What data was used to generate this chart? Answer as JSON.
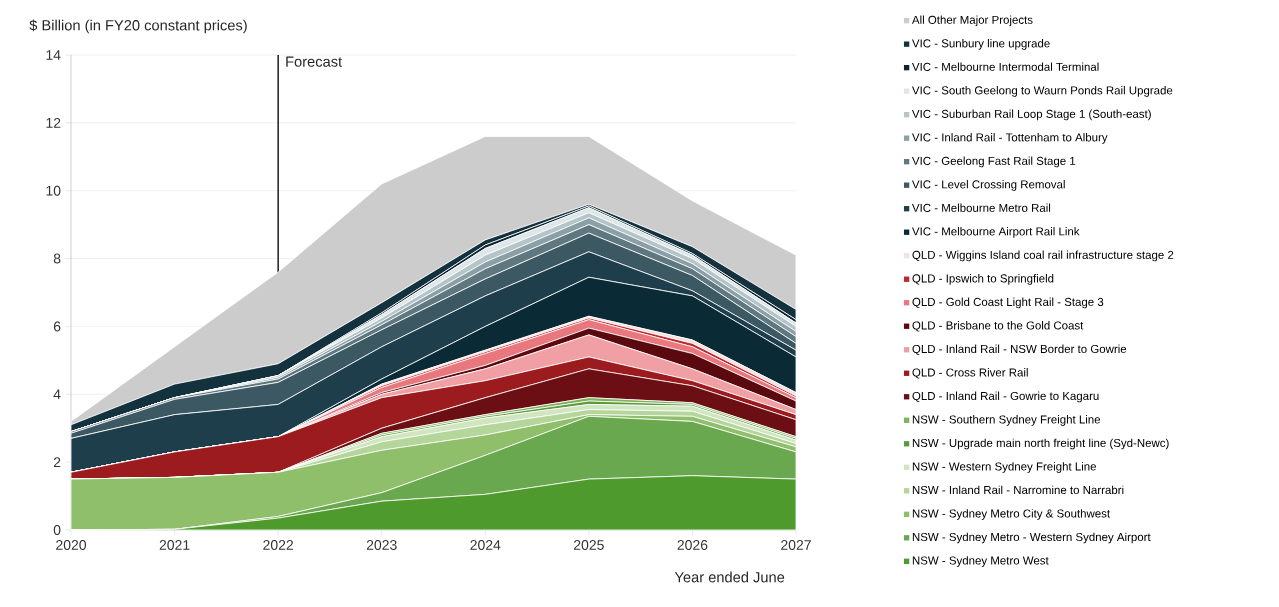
{
  "chart_data": {
    "type": "area",
    "stacked": true,
    "ylabel": "$ Billion (in FY20 constant prices)",
    "xlabel": "Year ended June",
    "x": [
      2020,
      2021,
      2022,
      2023,
      2024,
      2025,
      2026,
      2027
    ],
    "xlim": [
      2020,
      2027
    ],
    "xticks": [
      2020,
      2021,
      2022,
      2023,
      2024,
      2025,
      2026,
      2027
    ],
    "ylim": [
      0,
      14
    ],
    "yticks": [
      0,
      2,
      4,
      6,
      8,
      10,
      12,
      14
    ],
    "grid": "y",
    "legend": "right",
    "ref_lines": [
      {
        "axis": "x",
        "value": 2022,
        "label": "Forecast",
        "color": "#000000"
      }
    ],
    "series": [
      {
        "name": "NSW - Sydney Metro West",
        "color": "#4f9a2c",
        "values": [
          0,
          0.02,
          0.35,
          0.85,
          1.05,
          1.5,
          1.6,
          1.5
        ]
      },
      {
        "name": "NSW - Sydney Metro - Western Sydney Airport",
        "color": "#6aa84f",
        "values": [
          0,
          0,
          0.05,
          0.25,
          1.15,
          1.85,
          1.6,
          0.8
        ]
      },
      {
        "name": "NSW - Sydney Metro City & Southwest",
        "color": "#8fbf6a",
        "values": [
          1.5,
          1.53,
          1.3,
          1.25,
          0.6,
          0.05,
          0.15,
          0.15
        ]
      },
      {
        "name": "NSW - Inland Rail - Narromine to Narrabri",
        "color": "#b5d69b",
        "values": [
          0,
          0,
          0,
          0.25,
          0.3,
          0.15,
          0.15,
          0.1
        ]
      },
      {
        "name": "NSW - Western Sydney Freight Line",
        "color": "#d0e6c0",
        "values": [
          0,
          0,
          0,
          0.15,
          0.2,
          0.15,
          0.15,
          0.1
        ]
      },
      {
        "name": "NSW - Upgrade main north freight line (Syd-Newc)",
        "color": "#5a9a3a",
        "values": [
          0,
          0,
          0,
          0.05,
          0.05,
          0.1,
          0.05,
          0.05
        ]
      },
      {
        "name": "NSW - Southern Sydney Freight Line",
        "color": "#7fb35a",
        "values": [
          0,
          0,
          0,
          0.05,
          0.05,
          0.1,
          0.05,
          0.05
        ]
      },
      {
        "name": "QLD - Inland Rail - Gowrie to Kagaru",
        "color": "#6b0f14",
        "values": [
          0,
          0,
          0,
          0.15,
          0.5,
          0.85,
          0.5,
          0.5
        ]
      },
      {
        "name": "QLD - Cross River Rail",
        "color": "#9b1b1e",
        "values": [
          0.2,
          0.75,
          1.05,
          0.9,
          0.5,
          0.35,
          0.15,
          0.15
        ]
      },
      {
        "name": "QLD - Inland Rail - NSW Border to Gowrie",
        "color": "#f0a0a5",
        "values": [
          0,
          0,
          0,
          0.1,
          0.35,
          0.65,
          0.35,
          0.15
        ]
      },
      {
        "name": "QLD - Brisbane to the Gold Coast",
        "color": "#5a0a0e",
        "values": [
          0,
          0,
          0,
          0.05,
          0.1,
          0.2,
          0.45,
          0.25
        ]
      },
      {
        "name": "QLD - Gold Coast Light Rail - Stage 3",
        "color": "#e8777e",
        "values": [
          0,
          0,
          0,
          0.15,
          0.35,
          0.25,
          0.2,
          0.1
        ]
      },
      {
        "name": "QLD - Ipswich to Springfield",
        "color": "#c0272d",
        "values": [
          0,
          0,
          0,
          0.05,
          0.05,
          0.05,
          0.1,
          0.05
        ]
      },
      {
        "name": "QLD - Wiggins Island coal rail infrastructure stage 2",
        "color": "#f5e0e0",
        "values": [
          0,
          0,
          0,
          0.05,
          0.05,
          0.05,
          0.1,
          0.1
        ]
      },
      {
        "name": "VIC - Melbourne Airport Rail Link",
        "color": "#0a2a36",
        "values": [
          0,
          0,
          0,
          0.15,
          0.7,
          1.15,
          1.3,
          1.05
        ]
      },
      {
        "name": "VIC - Melbourne Metro Rail",
        "color": "#1e3e4b",
        "values": [
          1.0,
          1.1,
          0.95,
          0.95,
          0.9,
          0.75,
          0.15,
          0.2
        ]
      },
      {
        "name": "VIC - Level Crossing Removal",
        "color": "#3c5862",
        "values": [
          0.15,
          0.45,
          0.65,
          0.5,
          0.5,
          0.55,
          0.45,
          0.2
        ]
      },
      {
        "name": "VIC - Geelong Fast Rail Stage 1",
        "color": "#5f7880",
        "values": [
          0.05,
          0.05,
          0.1,
          0.15,
          0.3,
          0.25,
          0.2,
          0.2
        ]
      },
      {
        "name": "VIC - Inland Rail - Tottenham to Albury",
        "color": "#8aa0a6",
        "values": [
          0,
          0,
          0.05,
          0.1,
          0.2,
          0.2,
          0.15,
          0.15
        ]
      },
      {
        "name": "VIC - Suburban Rail Loop Stage 1 (South-east)",
        "color": "#b4c4c8",
        "values": [
          0,
          0,
          0.05,
          0.1,
          0.2,
          0.15,
          0.15,
          0.15
        ]
      },
      {
        "name": "VIC - South Geelong to Waurn Ponds Rail Upgrade",
        "color": "#dde6e8",
        "values": [
          0,
          0,
          0,
          0.1,
          0.2,
          0.15,
          0.1,
          0.1
        ]
      },
      {
        "name": "VIC - Melbourne Intermodal Terminal",
        "color": "#0d2530",
        "values": [
          0,
          0,
          0,
          0.05,
          0.1,
          0.05,
          0.05,
          0.1
        ]
      },
      {
        "name": "VIC - Sunbury line upgrade",
        "color": "#14323e",
        "values": [
          0.2,
          0.4,
          0.35,
          0.3,
          0.15,
          0.05,
          0.2,
          0.3
        ]
      },
      {
        "name": "All Other Major Projects",
        "color": "#cccccc",
        "values": [
          0.1,
          1.1,
          2.7,
          3.5,
          3.05,
          2.0,
          1.35,
          1.6
        ]
      }
    ]
  }
}
